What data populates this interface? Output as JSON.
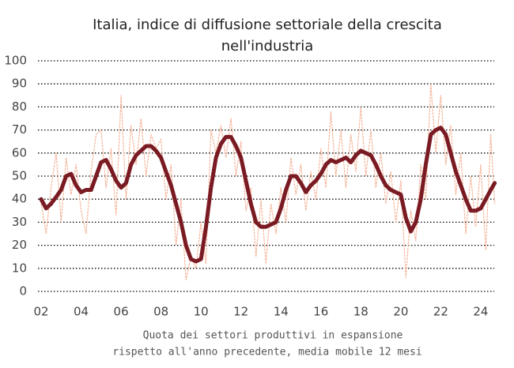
{
  "chart_data": {
    "type": "line",
    "title": [
      "Italia, indice di diffusione settoriale della crescita",
      "nell'industria"
    ],
    "x_label": [
      "Quota dei settori produttivi in espansione",
      "rispetto all'anno precedente, media mobile 12 mesi"
    ],
    "x": [
      2,
      2.25,
      2.5,
      2.75,
      3,
      3.25,
      3.5,
      3.75,
      4,
      4.25,
      4.5,
      4.75,
      5,
      5.25,
      5.5,
      5.75,
      6,
      6.25,
      6.5,
      6.75,
      7,
      7.25,
      7.5,
      7.75,
      8,
      8.25,
      8.5,
      8.75,
      9,
      9.25,
      9.5,
      9.75,
      10,
      10.25,
      10.5,
      10.75,
      11,
      11.25,
      11.5,
      11.75,
      12,
      12.25,
      12.5,
      12.75,
      13,
      13.25,
      13.5,
      13.75,
      14,
      14.25,
      14.5,
      14.75,
      15,
      15.25,
      15.5,
      15.75,
      16,
      16.25,
      16.5,
      16.75,
      17,
      17.25,
      17.5,
      17.75,
      18,
      18.25,
      18.5,
      18.75,
      19,
      19.25,
      19.5,
      19.75,
      20,
      20.25,
      20.5,
      20.75,
      21,
      21.25,
      21.5,
      21.75,
      22,
      22.25,
      22.5,
      22.75,
      23,
      23.25,
      23.5,
      23.75,
      24,
      24.25,
      24.5,
      24.7
    ],
    "series": [
      {
        "color": "#f5b59a",
        "values": [
          38,
          25,
          45,
          60,
          30,
          58,
          42,
          55,
          35,
          25,
          52,
          68,
          70,
          45,
          62,
          33,
          85,
          40,
          72,
          55,
          75,
          50,
          68,
          62,
          66,
          40,
          55,
          20,
          40,
          5,
          15,
          10,
          30,
          12,
          70,
          60,
          72,
          58,
          75,
          50,
          65,
          35,
          45,
          15,
          40,
          12,
          38,
          25,
          45,
          30,
          58,
          42,
          55,
          35,
          52,
          40,
          62,
          45,
          78,
          50,
          70,
          45,
          68,
          52,
          80,
          50,
          70,
          45,
          60,
          38,
          52,
          30,
          48,
          6,
          35,
          22,
          55,
          40,
          90,
          60,
          85,
          55,
          72,
          42,
          60,
          25,
          50,
          28,
          55,
          18,
          68,
          38
        ]
      },
      {
        "color": "#7a1a22",
        "values": [
          40,
          36,
          38,
          41,
          44,
          50,
          51,
          46,
          43,
          44,
          44,
          50,
          56,
          57,
          53,
          48,
          45,
          47,
          55,
          59,
          61,
          63,
          63,
          61,
          58,
          52,
          46,
          38,
          30,
          20,
          14,
          13,
          14,
          28,
          45,
          58,
          64,
          67,
          67,
          63,
          58,
          48,
          38,
          30,
          28,
          28,
          29,
          30,
          36,
          44,
          50,
          50,
          47,
          43,
          46,
          48,
          51,
          55,
          57,
          56,
          57,
          58,
          56,
          59,
          61,
          60,
          59,
          55,
          50,
          46,
          44,
          43,
          42,
          32,
          26,
          30,
          40,
          55,
          68,
          70,
          71,
          68,
          60,
          52,
          46,
          40,
          35,
          35,
          36,
          40,
          44,
          47
        ]
      }
    ],
    "xlim": [
      2,
      24.7
    ],
    "xticks": [
      {
        "value": 2,
        "label": "02"
      },
      {
        "value": 4,
        "label": "04"
      },
      {
        "value": 6,
        "label": "06"
      },
      {
        "value": 8,
        "label": "08"
      },
      10,
      12,
      14,
      16,
      18,
      20,
      22,
      24
    ],
    "ylim": [
      0,
      100
    ],
    "yticks": [
      0,
      10,
      20,
      30,
      40,
      50,
      60,
      70,
      80,
      90,
      100
    ],
    "grid": true
  }
}
